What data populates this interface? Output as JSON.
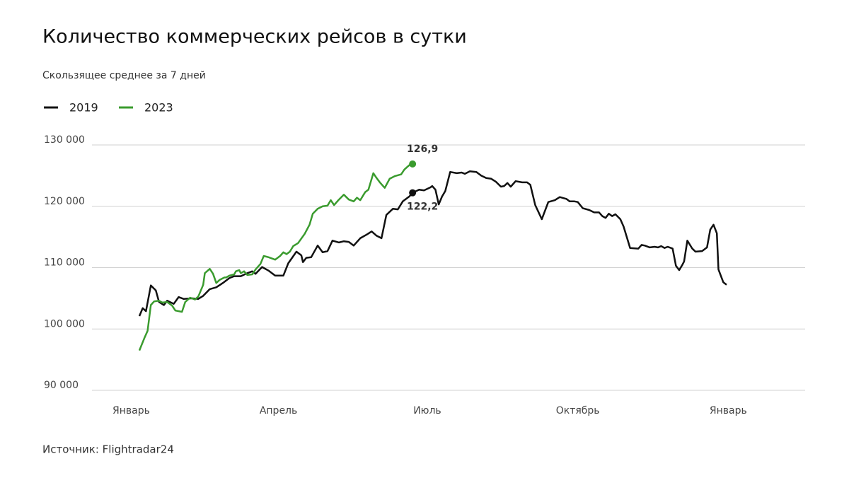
{
  "chart_data": {
    "type": "line",
    "title": "Количество коммерческих рейсов в сутки",
    "subtitle": "Скользящее среднее за 7 дней",
    "source": "Источник: Flightradar24",
    "xlim": [
      -24,
      412
    ],
    "xticks": [
      {
        "value": 0,
        "label": "Январь"
      },
      {
        "value": 90,
        "label": "Апрель"
      },
      {
        "value": 181,
        "label": "Июль"
      },
      {
        "value": 273,
        "label": "Октябрь"
      },
      {
        "value": 365,
        "label": "Январь"
      }
    ],
    "ylim": [
      90000,
      130000
    ],
    "yticks": [
      {
        "value": 90000,
        "label": "90 000"
      },
      {
        "value": 100000,
        "label": "100 000"
      },
      {
        "value": 110000,
        "label": "110 000"
      },
      {
        "value": 120000,
        "label": "120 000"
      },
      {
        "value": 130000,
        "label": "130 000"
      }
    ],
    "grid": true,
    "series": [
      {
        "name": "2019",
        "color": "#111111",
        "x": [
          5,
          7,
          9,
          12,
          15,
          17,
          20,
          22,
          26,
          29,
          32,
          37,
          41,
          44,
          48,
          52,
          56,
          60,
          63,
          67,
          71,
          74,
          76,
          80,
          84,
          88,
          93,
          96,
          101,
          104,
          105,
          107,
          110,
          114,
          117,
          120,
          123,
          127,
          130,
          133,
          136,
          140,
          144,
          147,
          150,
          153,
          156,
          160,
          163,
          166,
          170,
          172,
          176,
          179,
          183,
          184,
          186,
          188,
          190,
          192,
          195,
          199,
          202,
          204,
          207,
          211,
          214,
          217,
          220,
          223,
          226,
          228,
          230,
          232,
          235,
          239,
          242,
          244,
          247,
          251,
          255,
          259,
          262,
          266,
          268,
          271,
          273,
          276,
          280,
          283,
          286,
          288,
          290,
          292,
          294,
          296,
          299,
          301,
          305,
          310,
          312,
          314,
          317,
          320,
          322,
          324,
          326,
          328,
          331,
          333,
          335,
          337,
          338,
          340,
          343,
          345,
          349,
          352,
          354,
          356,
          358,
          359,
          362,
          364
        ],
        "values": [
          102100,
          103400,
          102900,
          107100,
          106300,
          104400,
          103900,
          104600,
          104100,
          105200,
          104900,
          105000,
          104900,
          105400,
          106500,
          106800,
          107500,
          108300,
          108600,
          108600,
          109100,
          109400,
          109000,
          110100,
          109500,
          108700,
          108700,
          110700,
          112600,
          112000,
          110900,
          111600,
          111700,
          113600,
          112500,
          112700,
          114400,
          114100,
          114300,
          114200,
          113600,
          114800,
          115400,
          115900,
          115200,
          114800,
          118600,
          119600,
          119500,
          120800,
          121600,
          122200,
          122700,
          122600,
          123100,
          123300,
          122700,
          120300,
          121600,
          122500,
          125600,
          125400,
          125500,
          125300,
          125700,
          125600,
          125000,
          124600,
          124500,
          124000,
          123200,
          123300,
          123800,
          123200,
          124100,
          123900,
          123900,
          123500,
          120200,
          117900,
          120700,
          121000,
          121500,
          121200,
          120800,
          120800,
          120700,
          119700,
          119400,
          119000,
          119000,
          118400,
          118100,
          118800,
          118400,
          118700,
          117900,
          116700,
          113200,
          113100,
          113700,
          113600,
          113300,
          113400,
          113300,
          113500,
          113200,
          113400,
          113100,
          110300,
          109600,
          110500,
          111000,
          114400,
          113100,
          112600,
          112700,
          113300,
          116200,
          117000,
          115600,
          109700,
          107600,
          107200
        ]
      },
      {
        "name": "2023",
        "color": "#3a9b2e",
        "x": [
          5,
          8,
          10,
          12,
          14,
          17,
          19,
          22,
          25,
          27,
          31,
          33,
          36,
          39,
          41,
          44,
          45,
          48,
          50,
          52,
          54,
          57,
          58,
          60,
          63,
          64,
          66,
          67,
          69,
          71,
          74,
          76,
          79,
          81,
          84,
          88,
          91,
          93,
          95,
          97,
          99,
          102,
          106,
          109,
          111,
          114,
          117,
          120,
          122,
          124,
          127,
          130,
          133,
          136,
          138,
          140,
          143,
          145,
          148,
          150,
          152,
          155,
          158,
          161,
          165,
          167,
          170,
          172
        ],
        "values": [
          96500,
          98500,
          99700,
          103900,
          104500,
          104600,
          104300,
          104400,
          103800,
          103000,
          102800,
          104400,
          105100,
          104800,
          105300,
          107200,
          109100,
          109800,
          109000,
          107500,
          108000,
          108400,
          108400,
          108700,
          108900,
          109400,
          109600,
          109100,
          109400,
          108800,
          108900,
          109700,
          110600,
          111900,
          111700,
          111300,
          111900,
          112500,
          112200,
          112600,
          113500,
          114000,
          115500,
          117000,
          118800,
          119600,
          120000,
          120100,
          121000,
          120200,
          121100,
          121900,
          121100,
          120800,
          121400,
          121000,
          122300,
          122700,
          125400,
          124600,
          123900,
          123000,
          124500,
          124900,
          125200,
          126000,
          126700,
          126900
        ]
      }
    ],
    "annotations": [
      {
        "label": "126,9",
        "x": 172,
        "y": 126900,
        "color": "#3a9b2e"
      },
      {
        "label": "122,2",
        "x": 172,
        "y": 122200,
        "color": "#111111"
      }
    ]
  }
}
